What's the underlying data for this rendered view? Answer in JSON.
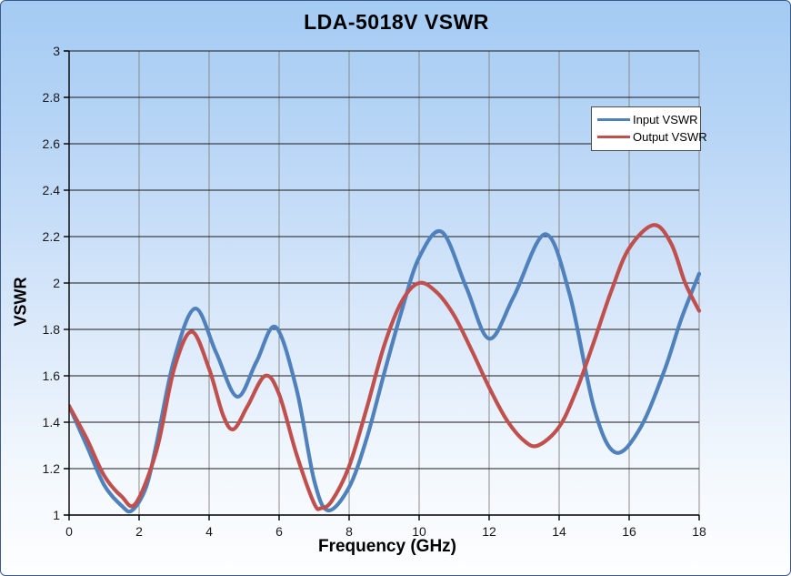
{
  "window": {
    "background_top": "#a4cbf3",
    "background_bottom": "#fdfeff",
    "border_color": "#3d5a8a"
  },
  "chart_data": {
    "type": "line",
    "title": "LDA-5018V VSWR",
    "xlabel": "Frequency (GHz)",
    "ylabel": "VSWR",
    "xlim": [
      0,
      18
    ],
    "ylim": [
      1,
      3
    ],
    "x_ticks": [
      0,
      2,
      4,
      6,
      8,
      10,
      12,
      14,
      16,
      18
    ],
    "y_ticks": [
      1,
      1.2,
      1.4,
      1.6,
      1.8,
      2,
      2.2,
      2.4,
      2.6,
      2.8,
      3
    ],
    "grid": {
      "horizontal": "on",
      "vertical": "on",
      "h_color": "#1a1a1a",
      "v_color": "#8a8a8a"
    },
    "legend": {
      "position": "upper-right",
      "background": "#ffffff",
      "border": "#4d4d4d"
    },
    "axis_color": "#000000",
    "tick_label_color": "#1a1a1a",
    "series": [
      {
        "name": "Input VSWR",
        "color": "#4F81BD",
        "points": [
          [
            0,
            1.47
          ],
          [
            0.5,
            1.3
          ],
          [
            1.0,
            1.13
          ],
          [
            1.5,
            1.04
          ],
          [
            1.8,
            1.02
          ],
          [
            2.2,
            1.12
          ],
          [
            2.5,
            1.31
          ],
          [
            3.0,
            1.67
          ],
          [
            3.6,
            1.89
          ],
          [
            4.2,
            1.7
          ],
          [
            4.8,
            1.51
          ],
          [
            5.35,
            1.66
          ],
          [
            5.9,
            1.81
          ],
          [
            6.5,
            1.54
          ],
          [
            7.0,
            1.15
          ],
          [
            7.4,
            1.02
          ],
          [
            8.0,
            1.12
          ],
          [
            8.5,
            1.33
          ],
          [
            9.0,
            1.61
          ],
          [
            9.5,
            1.88
          ],
          [
            10.0,
            2.11
          ],
          [
            10.65,
            2.22
          ],
          [
            11.35,
            1.98
          ],
          [
            12.0,
            1.76
          ],
          [
            12.7,
            1.94
          ],
          [
            13.6,
            2.21
          ],
          [
            14.3,
            1.95
          ],
          [
            15.0,
            1.46
          ],
          [
            15.6,
            1.27
          ],
          [
            16.3,
            1.37
          ],
          [
            17.0,
            1.62
          ],
          [
            17.5,
            1.85
          ],
          [
            18.0,
            2.04
          ]
        ]
      },
      {
        "name": "Output VSWR",
        "color": "#C0504D",
        "points": [
          [
            0,
            1.47
          ],
          [
            0.5,
            1.33
          ],
          [
            1.0,
            1.17
          ],
          [
            1.5,
            1.08
          ],
          [
            1.9,
            1.05
          ],
          [
            2.5,
            1.28
          ],
          [
            3.0,
            1.63
          ],
          [
            3.5,
            1.79
          ],
          [
            4.0,
            1.63
          ],
          [
            4.4,
            1.43
          ],
          [
            4.7,
            1.37
          ],
          [
            5.1,
            1.47
          ],
          [
            5.6,
            1.6
          ],
          [
            6.0,
            1.52
          ],
          [
            6.5,
            1.26
          ],
          [
            7.0,
            1.05
          ],
          [
            7.2,
            1.03
          ],
          [
            7.5,
            1.06
          ],
          [
            8.0,
            1.21
          ],
          [
            8.5,
            1.46
          ],
          [
            9.0,
            1.73
          ],
          [
            9.5,
            1.92
          ],
          [
            10.0,
            2.0
          ],
          [
            10.5,
            1.96
          ],
          [
            11.0,
            1.86
          ],
          [
            11.5,
            1.71
          ],
          [
            12.0,
            1.55
          ],
          [
            12.5,
            1.41
          ],
          [
            13.0,
            1.32
          ],
          [
            13.4,
            1.3
          ],
          [
            14.0,
            1.38
          ],
          [
            14.5,
            1.54
          ],
          [
            15.0,
            1.75
          ],
          [
            15.5,
            1.97
          ],
          [
            16.0,
            2.15
          ],
          [
            16.7,
            2.25
          ],
          [
            17.2,
            2.17
          ],
          [
            17.6,
            2.0
          ],
          [
            18.0,
            1.88
          ]
        ]
      }
    ]
  }
}
